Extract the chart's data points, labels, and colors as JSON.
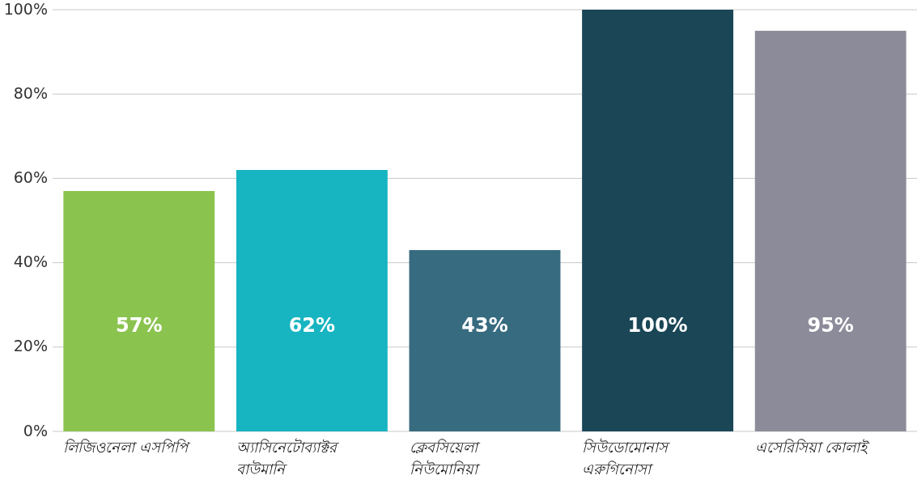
{
  "chart_data": {
    "type": "bar",
    "categories": [
      "লিজিওনেলা এসপিপি",
      "অ্যাসিনেটোব্যাক্টর বাউমানি",
      "ক্লেবসিয়েলা নিউমোনিয়া",
      "সিউডোমোনাস এরুগিনোসা",
      "এসেরিসিয়া কোলাই"
    ],
    "values": [
      57,
      62,
      43,
      100,
      95
    ],
    "colors": [
      "#8bc34f",
      "#17b4c1",
      "#376b80",
      "#1a4656",
      "#8c8b99"
    ],
    "value_labels": [
      "57%",
      "62%",
      "43%",
      "100%",
      "95%"
    ],
    "ylim": [
      0,
      100
    ],
    "yticks": [
      {
        "value": 0,
        "label": "0%"
      },
      {
        "value": 20,
        "label": "20%"
      },
      {
        "value": 40,
        "label": "40%"
      },
      {
        "value": 60,
        "label": "60%"
      },
      {
        "value": 80,
        "label": "80%"
      },
      {
        "value": 100,
        "label": "100%"
      }
    ],
    "grid": "y"
  }
}
